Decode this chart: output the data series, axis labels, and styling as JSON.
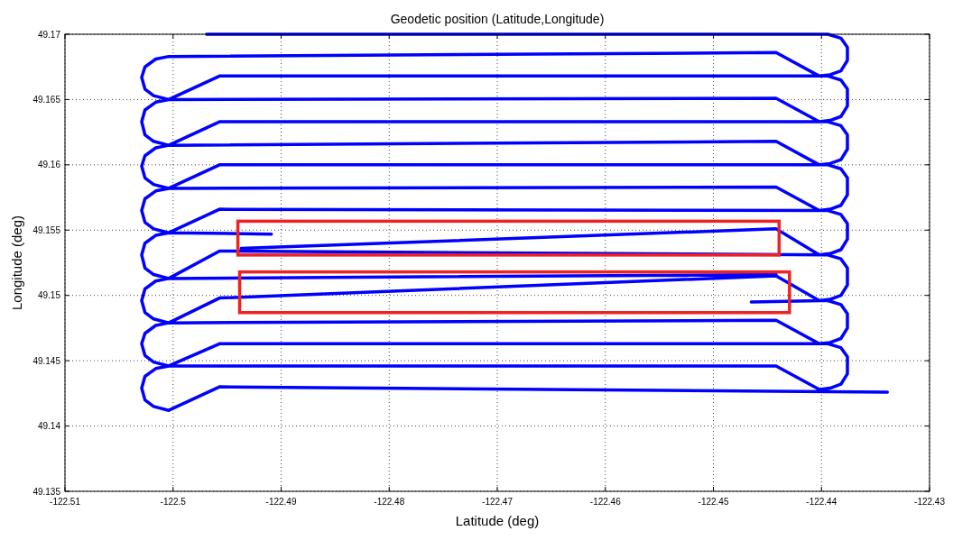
{
  "chart_data": {
    "type": "line",
    "title": "Geodetic position (Latitude,Longitude)",
    "xlabel": "Latitude (deg)",
    "ylabel": "Longitude (deg)",
    "xlim": [
      -122.51,
      -122.43
    ],
    "xticks": [
      -122.51,
      -122.5,
      -122.49,
      -122.48,
      -122.47,
      -122.46,
      -122.45,
      -122.44,
      -122.43
    ],
    "ylim": [
      49.135,
      49.17
    ],
    "yticks": [
      49.135,
      49.14,
      49.145,
      49.15,
      49.155,
      49.16,
      49.165,
      49.17
    ],
    "grid": true,
    "series": [
      {
        "color": "#0000ff",
        "x": [
          -122.4969,
          -122.4394,
          -122.4382,
          -122.4376,
          -122.4376,
          -122.4382,
          -122.4392,
          -122.4402,
          -122.4442,
          -122.5004,
          -122.5016,
          -122.5026,
          -122.5029,
          -122.5026,
          -122.5018,
          -122.5004,
          -122.4957,
          -122.4394,
          -122.4382,
          -122.4376,
          -122.4376,
          -122.4382,
          -122.4392,
          -122.4402,
          -122.4442,
          -122.5004,
          -122.5016,
          -122.5026,
          -122.5029,
          -122.5026,
          -122.5018,
          -122.5004,
          -122.4957,
          -122.4394,
          -122.4382,
          -122.4376,
          -122.4376,
          -122.4382,
          -122.4392,
          -122.4402,
          -122.4442,
          -122.5004,
          -122.5016,
          -122.5026,
          -122.5029,
          -122.5026,
          -122.5018,
          -122.5004,
          -122.4957,
          -122.4394,
          -122.4382,
          -122.4376,
          -122.4376,
          -122.4382,
          -122.4392,
          -122.4402,
          -122.4442,
          -122.5004,
          -122.5016,
          -122.5026,
          -122.5029,
          -122.5026,
          -122.5018,
          -122.5004,
          -122.4957,
          -122.4394,
          -122.4382,
          -122.4376,
          -122.4376,
          -122.4382,
          -122.4392,
          -122.4402,
          -122.4442,
          -122.4937,
          null,
          -122.4909,
          -122.5004,
          -122.5016,
          -122.5026,
          -122.5029,
          -122.5026,
          -122.5018,
          -122.5004,
          -122.4957,
          -122.4394,
          -122.4382,
          -122.4376,
          -122.4376,
          -122.4382,
          -122.4392,
          -122.4402,
          -122.4465,
          null,
          -122.4442,
          -122.5004,
          -122.5016,
          -122.5026,
          -122.5029,
          -122.5026,
          -122.5018,
          -122.5004,
          -122.4957,
          -122.4442,
          -122.4402,
          -122.4394,
          -122.4382,
          -122.4376,
          -122.4376,
          -122.4382,
          -122.4392,
          -122.4402,
          -122.4442,
          -122.5004,
          -122.5016,
          -122.5026,
          -122.5029,
          -122.5026,
          -122.5018,
          -122.5004,
          -122.4957,
          -122.4394,
          -122.4382,
          -122.4376,
          -122.4376,
          -122.4382,
          -122.4392,
          -122.4402,
          -122.4442,
          -122.5004,
          -122.5016,
          -122.5026,
          -122.5029,
          -122.5026,
          -122.5018,
          -122.5004,
          -122.4957,
          -122.4339
        ],
        "values": [
          49.17,
          49.17,
          49.1697,
          49.169,
          49.168,
          49.1672,
          49.1669,
          49.1668,
          49.1686,
          49.1683,
          49.1681,
          49.1675,
          49.1667,
          49.1658,
          49.1653,
          49.165,
          49.1668,
          49.1668,
          49.1665,
          49.1658,
          49.1645,
          49.1637,
          49.1634,
          49.1633,
          49.1651,
          49.165,
          49.1648,
          49.1642,
          49.1633,
          49.1623,
          49.1618,
          49.1615,
          49.1633,
          49.1633,
          49.163,
          49.1623,
          49.1612,
          49.1604,
          49.1601,
          49.16,
          49.1618,
          49.1615,
          49.1613,
          49.1607,
          49.1599,
          49.159,
          49.1585,
          49.1582,
          49.16,
          49.16,
          49.1597,
          49.159,
          49.1577,
          49.1569,
          49.1566,
          49.1565,
          49.1583,
          49.1582,
          49.158,
          49.1574,
          49.1565,
          49.1556,
          49.1551,
          49.1548,
          49.1566,
          49.1565,
          49.1562,
          49.1555,
          49.1543,
          49.1535,
          49.1532,
          49.1531,
          49.1551,
          49.1536,
          null,
          49.1547,
          49.1548,
          49.1546,
          49.154,
          49.1531,
          49.1521,
          49.1516,
          49.1513,
          49.1534,
          49.1531,
          49.1528,
          49.1521,
          49.1508,
          49.15,
          49.1497,
          49.1496,
          49.1495,
          null,
          49.1516,
          49.1513,
          49.1511,
          49.1505,
          49.1496,
          49.1487,
          49.1482,
          49.1479,
          49.1498,
          49.1515,
          49.1496,
          49.1496,
          49.1493,
          49.1486,
          49.1475,
          49.1467,
          49.1464,
          49.1463,
          49.1481,
          49.1479,
          49.1477,
          49.1471,
          49.1463,
          49.1454,
          49.1449,
          49.1446,
          49.1463,
          49.1463,
          49.146,
          49.1453,
          49.144,
          49.1432,
          49.1429,
          49.1428,
          49.1446,
          49.1446,
          49.1444,
          49.1438,
          49.1429,
          49.142,
          49.1415,
          49.1412,
          49.143,
          49.1426
        ]
      }
    ]
  }
}
